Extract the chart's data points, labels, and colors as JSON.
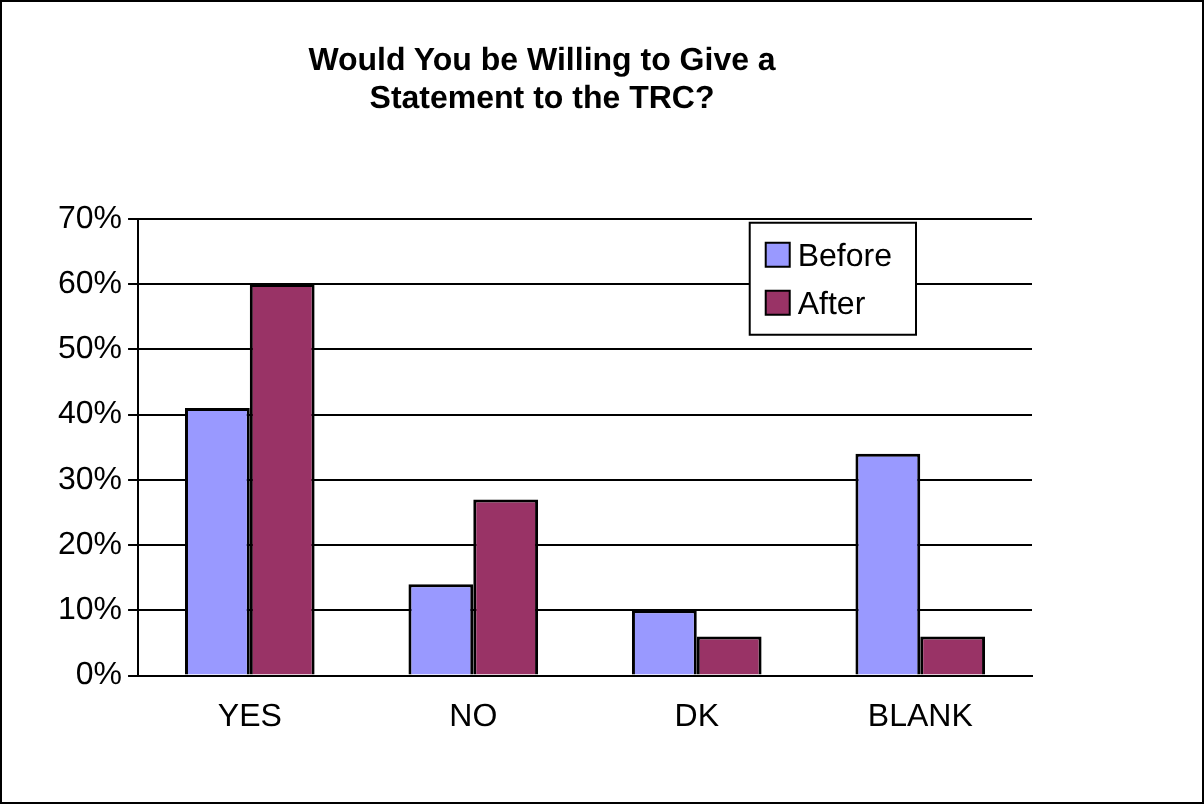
{
  "chart_data": {
    "type": "bar",
    "title": "Would You be Willing to Give a Statement to the TRC?",
    "categories": [
      "YES",
      "NO",
      "DK",
      "BLANK"
    ],
    "series": [
      {
        "name": "Before",
        "color": "#9999ff",
        "values": [
          41,
          14,
          10,
          34
        ]
      },
      {
        "name": "After",
        "color": "#993366",
        "values": [
          60,
          27,
          6,
          6
        ]
      }
    ],
    "ylim": [
      0,
      70
    ],
    "yticks": [
      {
        "value": 0,
        "label": "0%"
      },
      {
        "value": 10,
        "label": "10%"
      },
      {
        "value": 20,
        "label": "20%"
      },
      {
        "value": 30,
        "label": "30%"
      },
      {
        "value": 40,
        "label": "40%"
      },
      {
        "value": 50,
        "label": "50%"
      },
      {
        "value": 60,
        "label": "60%"
      },
      {
        "value": 70,
        "label": "70%"
      }
    ],
    "grid": "y",
    "legend": "top right"
  }
}
